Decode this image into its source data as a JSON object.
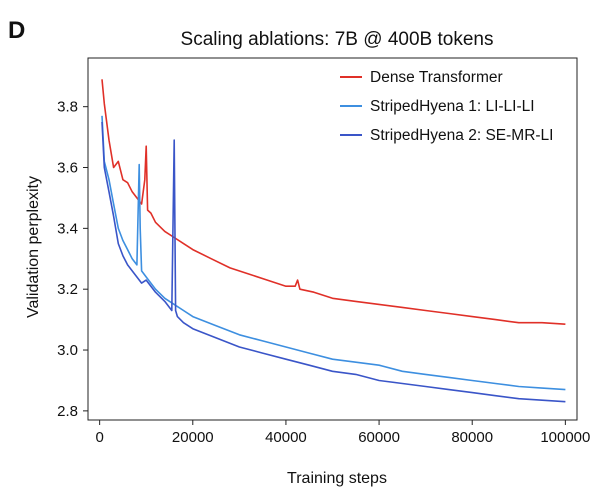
{
  "panel_label": "D",
  "chart_data": {
    "type": "line",
    "title": "Scaling ablations: 7B @ 400B tokens",
    "xlabel": "Training steps",
    "ylabel": "Validation perplexity",
    "xlim": [
      -2500,
      102500
    ],
    "ylim": [
      2.77,
      3.96
    ],
    "xticks": [
      0,
      20000,
      40000,
      60000,
      80000,
      100000
    ],
    "xtick_labels": [
      "0",
      "20000",
      "40000",
      "60000",
      "80000",
      "100000"
    ],
    "yticks": [
      2.8,
      3.0,
      3.2,
      3.4,
      3.6,
      3.8
    ],
    "ytick_labels": [
      "2.8",
      "3.0",
      "3.2",
      "3.4",
      "3.6",
      "3.8"
    ],
    "grid": false,
    "legend_position": "top-right",
    "series": [
      {
        "name": "Dense Transformer",
        "color": "#e03028",
        "x": [
          500,
          1000,
          2000,
          3000,
          4000,
          5000,
          6000,
          7000,
          8000,
          9000,
          9700,
          10000,
          10300,
          11000,
          12000,
          14000,
          16000,
          18000,
          20000,
          24000,
          28000,
          32000,
          36000,
          40000,
          42000,
          42500,
          43000,
          46000,
          50000,
          55000,
          60000,
          65000,
          70000,
          75000,
          80000,
          85000,
          90000,
          95000,
          100000
        ],
        "y": [
          3.89,
          3.81,
          3.69,
          3.6,
          3.62,
          3.56,
          3.55,
          3.52,
          3.5,
          3.48,
          3.56,
          3.67,
          3.46,
          3.45,
          3.42,
          3.39,
          3.37,
          3.35,
          3.33,
          3.3,
          3.27,
          3.25,
          3.23,
          3.21,
          3.21,
          3.23,
          3.2,
          3.19,
          3.17,
          3.16,
          3.15,
          3.14,
          3.13,
          3.12,
          3.11,
          3.1,
          3.09,
          3.09,
          3.085
        ]
      },
      {
        "name": "StripedHyena 1: LI-LI-LI",
        "color": "#3d8fe0",
        "x": [
          500,
          1000,
          2000,
          3000,
          4000,
          5000,
          6000,
          7000,
          8000,
          8500,
          8700,
          9000,
          10000,
          12000,
          14000,
          16000,
          18000,
          20000,
          25000,
          30000,
          35000,
          40000,
          45000,
          50000,
          55000,
          60000,
          65000,
          70000,
          75000,
          80000,
          85000,
          90000,
          95000,
          100000
        ],
        "y": [
          3.77,
          3.62,
          3.56,
          3.48,
          3.4,
          3.36,
          3.33,
          3.3,
          3.28,
          3.61,
          3.4,
          3.26,
          3.24,
          3.2,
          3.17,
          3.15,
          3.13,
          3.11,
          3.08,
          3.05,
          3.03,
          3.01,
          2.99,
          2.97,
          2.96,
          2.95,
          2.93,
          2.92,
          2.91,
          2.9,
          2.89,
          2.88,
          2.875,
          2.87
        ]
      },
      {
        "name": "StripedHyena 2: SE-MR-LI",
        "color": "#3a55c8",
        "x": [
          500,
          1000,
          2000,
          3000,
          4000,
          5000,
          6000,
          7000,
          8000,
          9000,
          10000,
          12000,
          14000,
          15500,
          16000,
          16300,
          16700,
          18000,
          20000,
          25000,
          30000,
          35000,
          40000,
          45000,
          50000,
          55000,
          60000,
          65000,
          70000,
          75000,
          80000,
          85000,
          90000,
          95000,
          100000
        ],
        "y": [
          3.75,
          3.6,
          3.52,
          3.44,
          3.35,
          3.31,
          3.28,
          3.26,
          3.24,
          3.22,
          3.23,
          3.19,
          3.16,
          3.13,
          3.69,
          3.13,
          3.11,
          3.09,
          3.07,
          3.04,
          3.01,
          2.99,
          2.97,
          2.95,
          2.93,
          2.92,
          2.9,
          2.89,
          2.88,
          2.87,
          2.86,
          2.85,
          2.84,
          2.835,
          2.83
        ]
      }
    ]
  }
}
